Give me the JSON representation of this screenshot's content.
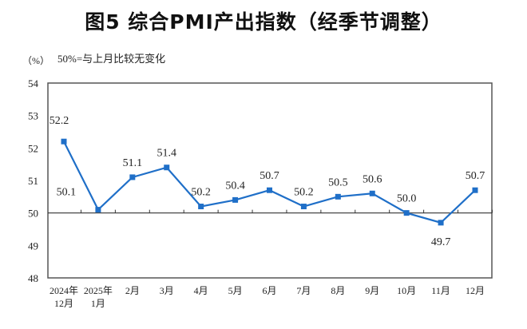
{
  "chart_data": {
    "type": "line",
    "title": "图5  综合PMI产出指数（经季节调整）",
    "unit_label": "（%）",
    "annotation": "50%=与上月比较无变化",
    "categories": [
      [
        "2024年",
        "12月"
      ],
      [
        "2025年",
        "1月"
      ],
      [
        "2月"
      ],
      [
        "3月"
      ],
      [
        "4月"
      ],
      [
        "5月"
      ],
      [
        "6月"
      ],
      [
        "7月"
      ],
      [
        "8月"
      ],
      [
        "9月"
      ],
      [
        "10月"
      ],
      [
        "11月"
      ],
      [
        "12月"
      ]
    ],
    "values": [
      52.2,
      50.1,
      51.1,
      51.4,
      50.2,
      50.4,
      50.7,
      50.2,
      50.5,
      50.6,
      50.0,
      49.7,
      50.7
    ],
    "value_labels": [
      "52.2",
      "50.1",
      "51.1",
      "51.4",
      "50.2",
      "50.4",
      "50.7",
      "50.2",
      "50.5",
      "50.6",
      "50.0",
      "49.7",
      "50.7"
    ],
    "ylim": [
      48,
      54
    ],
    "yticks": [
      "48",
      "49",
      "50",
      "51",
      "52",
      "53",
      "54"
    ],
    "reference_line": 50,
    "grid": false,
    "legend": "none",
    "colors": {
      "series": "#1f6fc8",
      "axis": "#555555"
    }
  }
}
